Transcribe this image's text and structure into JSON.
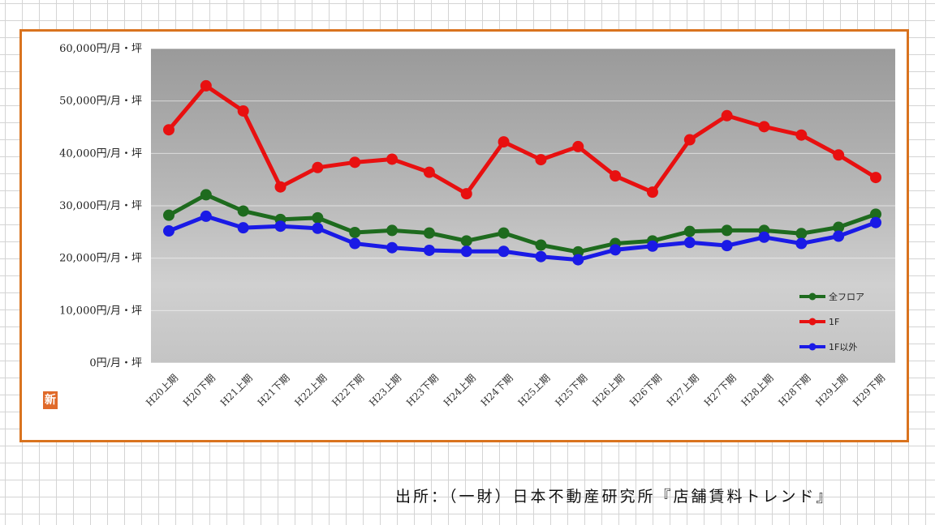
{
  "badge": "新",
  "source": "出所：（一財）日本不動産研究所『店舗賃料トレンド』",
  "chart_data": {
    "type": "line",
    "title": "",
    "xlabel": "",
    "ylabel": "",
    "ylim": [
      0,
      60000
    ],
    "yticks": [
      {
        "value": 0,
        "label": "0円/月・坪"
      },
      {
        "value": 10000,
        "label": "10,000円/月・坪"
      },
      {
        "value": 20000,
        "label": "20,000円/月・坪"
      },
      {
        "value": 30000,
        "label": "30,000円/月・坪"
      },
      {
        "value": 40000,
        "label": "40,000円/月・坪"
      },
      {
        "value": 50000,
        "label": "50,000円/月・坪"
      },
      {
        "value": 60000,
        "label": "60,000円/月・坪"
      }
    ],
    "categories": [
      "H20上期",
      "H20下期",
      "H21上期",
      "H21下期",
      "H22上期",
      "H22下期",
      "H23上期",
      "H23下期",
      "H24上期",
      "H24下期",
      "H25上期",
      "H25下期",
      "H26上期",
      "H26下期",
      "H27上期",
      "H27下期",
      "H28上期",
      "H28下期",
      "H29上期",
      "H29下期"
    ],
    "grid": true,
    "legend": "bottom-right",
    "series": [
      {
        "name": "全フロア",
        "color": "#1e6b1e",
        "values": [
          28200,
          32100,
          29000,
          27400,
          27700,
          24900,
          25300,
          24800,
          23300,
          24800,
          22500,
          21200,
          22800,
          23300,
          25100,
          25300,
          25300,
          24700,
          25900,
          28400
        ]
      },
      {
        "name": "1F",
        "color": "#e81010",
        "values": [
          44500,
          52900,
          48100,
          33600,
          37300,
          38300,
          38900,
          36400,
          32300,
          42200,
          38800,
          41300,
          35700,
          32600,
          42600,
          47200,
          45100,
          43500,
          39700,
          35400
        ]
      },
      {
        "name": "1F以外",
        "color": "#1a1ae6",
        "values": [
          25200,
          28000,
          25800,
          26100,
          25700,
          22800,
          22000,
          21500,
          21300,
          21300,
          20300,
          19700,
          21600,
          22300,
          23000,
          22400,
          24000,
          22800,
          24200,
          26800
        ]
      }
    ]
  }
}
